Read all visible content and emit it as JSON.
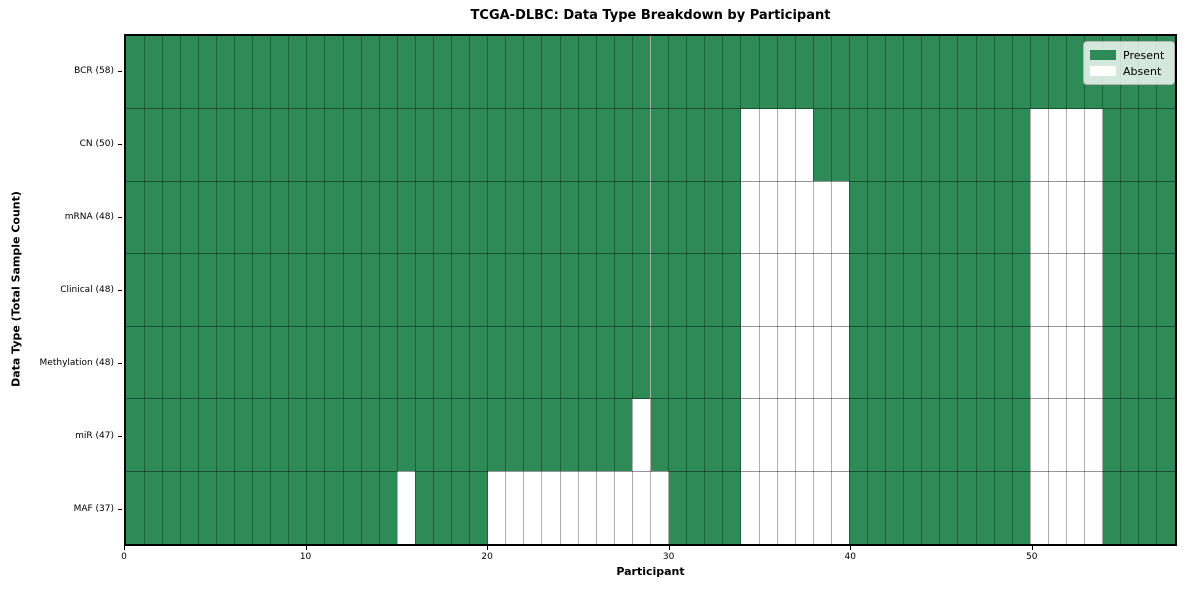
{
  "title": "TCGA-DLBC: Data Type Breakdown by Participant",
  "x_axis": {
    "label": "Participant",
    "ticks": [
      0,
      10,
      20,
      30,
      40,
      50
    ],
    "max": 58
  },
  "y_axis": {
    "label": "Data Type (Total Sample Count)"
  },
  "legend": {
    "items": [
      {
        "label": "Present",
        "color": "#2e8b57"
      },
      {
        "label": "Absent",
        "color": "#ffffff"
      }
    ]
  },
  "chart_data": {
    "type": "heatmap",
    "n_participants": 58,
    "present_color": "#2e8b57",
    "absent_color": "#ffffff",
    "grid": true,
    "legend_position": "upper right",
    "rows": [
      {
        "label": "BCR (58)",
        "data_type": "BCR",
        "total": 58,
        "absent_participants": []
      },
      {
        "label": "CN (50)",
        "data_type": "CN",
        "total": 50,
        "absent_participants": [
          34,
          35,
          36,
          37,
          50,
          51,
          52,
          53
        ]
      },
      {
        "label": "mRNA (48)",
        "data_type": "mRNA",
        "total": 48,
        "absent_participants": [
          34,
          35,
          36,
          37,
          38,
          39,
          50,
          51,
          52,
          53
        ]
      },
      {
        "label": "Clinical (48)",
        "data_type": "Clinical",
        "total": 48,
        "absent_participants": [
          34,
          35,
          36,
          37,
          38,
          39,
          50,
          51,
          52,
          53
        ]
      },
      {
        "label": "Methylation (48)",
        "data_type": "Methylation",
        "total": 48,
        "absent_participants": [
          34,
          35,
          36,
          37,
          38,
          39,
          50,
          51,
          52,
          53
        ]
      },
      {
        "label": "miR (47)",
        "data_type": "miR",
        "total": 47,
        "absent_participants": [
          28,
          34,
          35,
          36,
          37,
          38,
          39,
          50,
          51,
          52,
          53
        ]
      },
      {
        "label": "MAF (37)",
        "data_type": "MAF",
        "total": 37,
        "absent_participants": [
          15,
          20,
          21,
          22,
          23,
          24,
          25,
          26,
          27,
          28,
          29,
          34,
          35,
          36,
          37,
          38,
          39,
          50,
          51,
          52,
          53
        ]
      }
    ]
  }
}
